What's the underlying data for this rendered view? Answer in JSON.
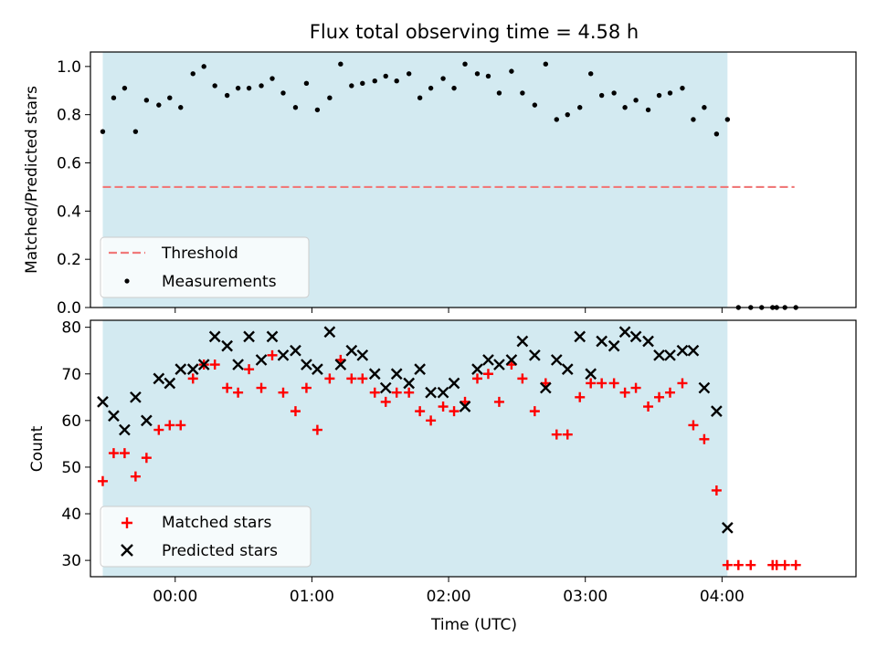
{
  "chart_data": [
    {
      "type": "scatter",
      "title": "Flux total observing time = 4.58 h",
      "xlabel": "",
      "ylabel": "Matched/Predicted stars",
      "xlim": [
        -0.62,
        4.98
      ],
      "ylim": [
        0.0,
        1.06
      ],
      "x_ticks": [
        0,
        1,
        2,
        3,
        4
      ],
      "x_tick_labels": [
        "00:00",
        "01:00",
        "02:00",
        "03:00",
        "04:00"
      ],
      "y_ticks": [
        0.0,
        0.2,
        0.4,
        0.6,
        0.8,
        1.0
      ],
      "y_tick_labels": [
        "0.0",
        "0.2",
        "0.4",
        "0.6",
        "0.8",
        "1.0"
      ],
      "shaded_span": {
        "x_start": -0.53,
        "x_end": 4.04,
        "color": "#d3eaf1"
      },
      "threshold": {
        "name": "Threshold",
        "value": 0.5,
        "x_start": -0.53,
        "x_end": 4.53,
        "color": "#f07a7a"
      },
      "series": [
        {
          "name": "Measurements",
          "marker": "dot",
          "color": "#000000",
          "x": [
            -0.53,
            -0.45,
            -0.37,
            -0.29,
            -0.21,
            -0.12,
            -0.04,
            0.04,
            0.13,
            0.21,
            0.29,
            0.38,
            0.46,
            0.54,
            0.63,
            0.71,
            0.79,
            0.88,
            0.96,
            1.04,
            1.13,
            1.21,
            1.29,
            1.37,
            1.46,
            1.54,
            1.62,
            1.71,
            1.79,
            1.87,
            1.96,
            2.04,
            2.12,
            2.21,
            2.29,
            2.37,
            2.46,
            2.54,
            2.63,
            2.71,
            2.79,
            2.87,
            2.96,
            3.04,
            3.12,
            3.21,
            3.29,
            3.37,
            3.46,
            3.54,
            3.62,
            3.71,
            3.79,
            3.87,
            3.96,
            4.04,
            4.12,
            4.21,
            4.29,
            4.37,
            4.4,
            4.46,
            4.54
          ],
          "y": [
            0.73,
            0.87,
            0.91,
            0.73,
            0.86,
            0.84,
            0.87,
            0.83,
            0.97,
            1.0,
            0.92,
            0.88,
            0.91,
            0.91,
            0.92,
            0.95,
            0.89,
            0.83,
            0.93,
            0.82,
            0.87,
            1.01,
            0.92,
            0.93,
            0.94,
            0.96,
            0.94,
            0.97,
            0.87,
            0.91,
            0.95,
            0.91,
            1.01,
            0.97,
            0.96,
            0.89,
            0.98,
            0.89,
            0.84,
            1.01,
            0.78,
            0.8,
            0.83,
            0.97,
            0.88,
            0.89,
            0.83,
            0.86,
            0.82,
            0.88,
            0.89,
            0.91,
            0.78,
            0.83,
            0.72,
            0.78,
            0.0,
            0.0,
            0.0,
            0.0,
            0.0,
            0.0,
            0.0
          ]
        }
      ],
      "legend": {
        "placement": "lower-left",
        "entries": [
          "Threshold",
          "Measurements"
        ]
      }
    },
    {
      "type": "scatter",
      "title": "",
      "xlabel": "Time (UTC)",
      "ylabel": "Count",
      "xlim": [
        -0.62,
        4.98
      ],
      "ylim": [
        26.5,
        81.5
      ],
      "x_ticks": [
        0,
        1,
        2,
        3,
        4
      ],
      "x_tick_labels": [
        "00:00",
        "01:00",
        "02:00",
        "03:00",
        "04:00"
      ],
      "y_ticks": [
        30,
        40,
        50,
        60,
        70,
        80
      ],
      "y_tick_labels": [
        "30",
        "40",
        "50",
        "60",
        "70",
        "80"
      ],
      "shaded_span": {
        "x_start": -0.53,
        "x_end": 4.04,
        "color": "#d3eaf1"
      },
      "series": [
        {
          "name": "Matched stars",
          "marker": "plus",
          "color": "#ff0000",
          "x": [
            -0.53,
            -0.45,
            -0.37,
            -0.29,
            -0.21,
            -0.12,
            -0.04,
            0.04,
            0.13,
            0.21,
            0.29,
            0.38,
            0.46,
            0.54,
            0.63,
            0.71,
            0.79,
            0.88,
            0.96,
            1.04,
            1.13,
            1.21,
            1.29,
            1.37,
            1.46,
            1.54,
            1.62,
            1.71,
            1.79,
            1.87,
            1.96,
            2.04,
            2.12,
            2.21,
            2.29,
            2.37,
            2.46,
            2.54,
            2.63,
            2.71,
            2.79,
            2.87,
            2.96,
            3.04,
            3.12,
            3.21,
            3.29,
            3.37,
            3.46,
            3.54,
            3.62,
            3.71,
            3.79,
            3.87,
            3.96,
            4.04,
            4.12,
            4.21,
            4.37,
            4.4,
            4.46,
            4.54
          ],
          "y": [
            47,
            53,
            53,
            48,
            52,
            58,
            59,
            59,
            69,
            72,
            72,
            67,
            66,
            71,
            67,
            74,
            66,
            62,
            67,
            58,
            69,
            73,
            69,
            69,
            66,
            64,
            66,
            66,
            62,
            60,
            63,
            62,
            64,
            69,
            70,
            64,
            72,
            69,
            62,
            68,
            57,
            57,
            65,
            68,
            68,
            68,
            66,
            67,
            63,
            65,
            66,
            68,
            59,
            56,
            45,
            29,
            29,
            29,
            29,
            29,
            29,
            29
          ]
        },
        {
          "name": "Predicted stars",
          "marker": "x",
          "color": "#000000",
          "x": [
            -0.53,
            -0.45,
            -0.37,
            -0.29,
            -0.21,
            -0.12,
            -0.04,
            0.04,
            0.13,
            0.21,
            0.29,
            0.38,
            0.46,
            0.54,
            0.63,
            0.71,
            0.79,
            0.88,
            0.96,
            1.04,
            1.13,
            1.21,
            1.29,
            1.37,
            1.46,
            1.54,
            1.62,
            1.71,
            1.79,
            1.87,
            1.96,
            2.04,
            2.12,
            2.21,
            2.29,
            2.37,
            2.46,
            2.54,
            2.63,
            2.71,
            2.79,
            2.87,
            2.96,
            3.04,
            3.12,
            3.21,
            3.29,
            3.37,
            3.46,
            3.54,
            3.62,
            3.71,
            3.79,
            3.87,
            3.96,
            4.04
          ],
          "y": [
            64,
            61,
            58,
            65,
            60,
            69,
            68,
            71,
            71,
            72,
            78,
            76,
            72,
            78,
            73,
            78,
            74,
            75,
            72,
            71,
            79,
            72,
            75,
            74,
            70,
            67,
            70,
            68,
            71,
            66,
            66,
            68,
            63,
            71,
            73,
            72,
            73,
            77,
            74,
            67,
            73,
            71,
            78,
            70,
            77,
            76,
            79,
            78,
            77,
            74,
            74,
            75,
            75,
            67,
            62,
            37
          ]
        }
      ],
      "legend": {
        "placement": "lower-left",
        "entries": [
          "Matched stars",
          "Predicted stars"
        ]
      }
    }
  ]
}
